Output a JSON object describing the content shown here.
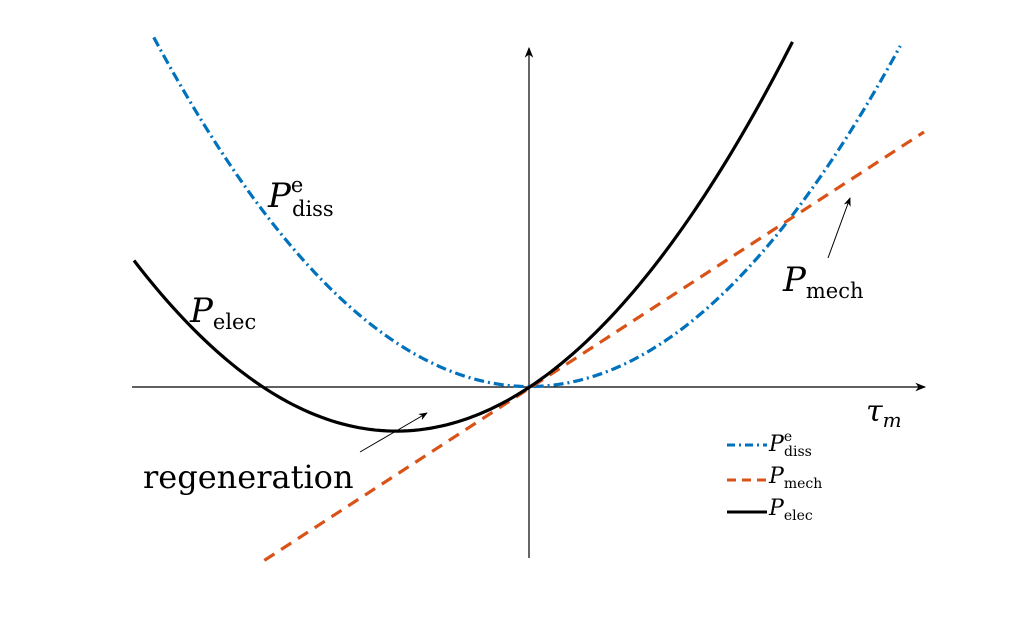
{
  "chart_data": {
    "type": "line",
    "title": "",
    "xlabel": {
      "base": "τ",
      "sub": "m"
    },
    "ylabel": "",
    "xlim": [
      -1.0,
      1.0
    ],
    "ylim": [
      -0.55,
      1.05
    ],
    "grid": false,
    "axes": "cross-at-origin",
    "legend_position": "bottom-right",
    "series": [
      {
        "key": "diss",
        "name": {
          "base": "P",
          "sub": "diss",
          "sup": "e"
        },
        "color": "#0072BD",
        "style": "dashdot",
        "x": [
          -0.95,
          -0.8,
          -0.6,
          -0.4,
          -0.2,
          0.0,
          0.2,
          0.4,
          0.6,
          0.8,
          0.94
        ],
        "y": [
          1.03,
          0.73,
          0.41,
          0.18,
          0.05,
          0.0,
          0.05,
          0.18,
          0.41,
          0.73,
          1.0
        ]
      },
      {
        "key": "mech",
        "name": {
          "base": "P",
          "sub": "mech"
        },
        "color": "#D95319",
        "style": "dashed",
        "x": [
          -0.67,
          1.0
        ],
        "y": [
          -0.51,
          0.75
        ]
      },
      {
        "key": "elec",
        "name": {
          "base": "P",
          "sub": "elec"
        },
        "color": "#000000",
        "style": "solid",
        "x": [
          -1.0,
          -0.8,
          -0.6,
          -0.4,
          -0.3,
          -0.2,
          0.0,
          0.2,
          0.4,
          0.6,
          0.667
        ],
        "y": [
          0.37,
          0.12,
          -0.06,
          -0.12,
          -0.13,
          -0.1,
          0.0,
          0.2,
          0.47,
          0.86,
          1.03
        ]
      }
    ],
    "annotations": [
      {
        "key": "diss",
        "text": {
          "base": "P",
          "sub": "diss",
          "sup": "e"
        }
      },
      {
        "key": "elec",
        "text": {
          "base": "P",
          "sub": "elec"
        }
      },
      {
        "key": "mech",
        "text": {
          "base": "P",
          "sub": "mech"
        }
      },
      {
        "key": "regen",
        "text": "regeneration"
      }
    ]
  }
}
